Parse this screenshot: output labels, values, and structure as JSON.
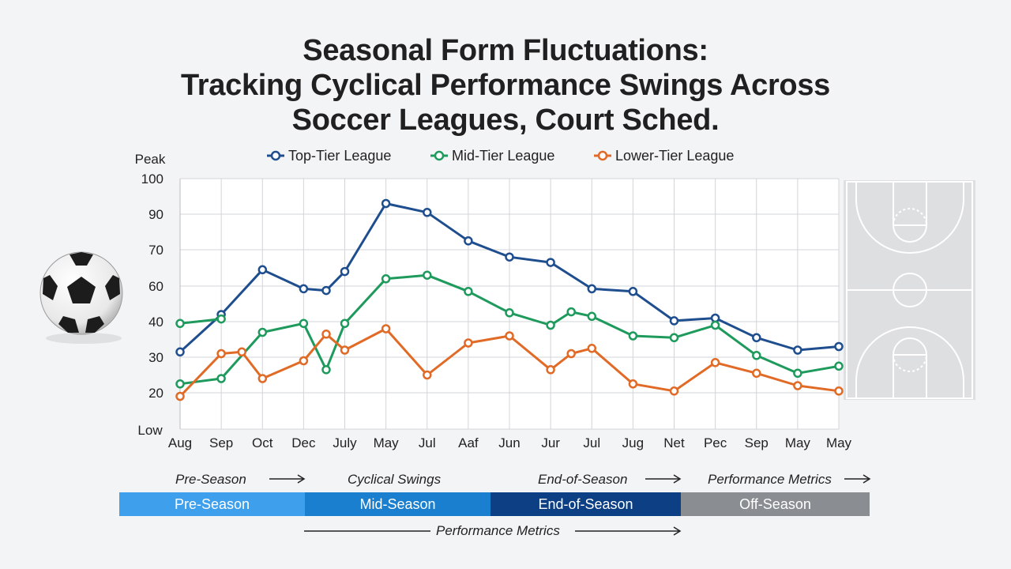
{
  "title_lines": [
    "Seasonal Form Fluctuations:",
    "Tracking Cyclical Performance Swings Across",
    "Soccer Leagues, Court Sched."
  ],
  "chart_data": {
    "type": "line",
    "y_top_label": "Peak",
    "y_bottom_label": "Low",
    "y_ticks": [
      "100",
      "90",
      "70",
      "60",
      "40",
      "30",
      "20"
    ],
    "categories": [
      "Aug",
      "Sep",
      "Oct",
      "Dec",
      "July",
      "May",
      "Jul",
      "Aaf",
      "Jun",
      "Jur",
      "Jul",
      "Jug",
      "Net",
      "Pec",
      "Sep",
      "May",
      "May"
    ],
    "grid": true,
    "legend_position": "top",
    "series": [
      {
        "name": "Top-Tier League",
        "color": "#1f4e8f",
        "points": [
          [
            0,
            31.5
          ],
          [
            1,
            44
          ],
          [
            2,
            64.5
          ],
          [
            3,
            58.5
          ],
          [
            3.55,
            57.5
          ],
          [
            4,
            64
          ],
          [
            5,
            93
          ],
          [
            6,
            90.5
          ],
          [
            7,
            75
          ],
          [
            8,
            68
          ],
          [
            9,
            66.5
          ],
          [
            10,
            58.5
          ],
          [
            11,
            57
          ],
          [
            12,
            40.5
          ],
          [
            13,
            42
          ],
          [
            14,
            35.5
          ],
          [
            15,
            32
          ],
          [
            16,
            33
          ]
        ]
      },
      {
        "name": "Mid-Tier League",
        "color": "#1e9a5c",
        "points": [
          [
            0,
            22.5
          ],
          [
            1,
            24
          ],
          [
            2,
            37
          ],
          [
            3,
            39.5
          ],
          [
            3.55,
            26.5
          ],
          [
            4,
            39.5
          ],
          [
            5,
            62
          ],
          [
            6,
            63
          ],
          [
            7,
            57
          ],
          [
            8,
            45
          ],
          [
            9,
            39
          ],
          [
            9.5,
            45.5
          ],
          [
            10,
            43
          ],
          [
            11,
            36
          ],
          [
            12,
            35.5
          ],
          [
            13,
            39
          ],
          [
            14,
            30.5
          ],
          [
            15,
            25.5
          ],
          [
            16,
            27.5
          ]
        ],
        "extra_segments": [
          [
            [
              0,
              39.5
            ],
            [
              1,
              41.5
            ]
          ]
        ]
      },
      {
        "name": "Lower-Tier League",
        "color": "#e06a26",
        "points": [
          [
            0,
            19
          ],
          [
            1,
            31
          ],
          [
            1.5,
            31.5
          ],
          [
            2,
            24
          ],
          [
            3,
            29
          ],
          [
            3.55,
            36.5
          ],
          [
            4,
            32
          ],
          [
            5,
            38
          ],
          [
            6,
            25
          ],
          [
            7,
            34
          ],
          [
            8,
            36
          ],
          [
            9,
            26.5
          ],
          [
            9.5,
            31
          ],
          [
            10,
            32.5
          ],
          [
            11,
            22.5
          ],
          [
            12,
            20.5
          ],
          [
            13,
            28.5
          ],
          [
            14,
            25.5
          ],
          [
            15,
            22
          ],
          [
            16,
            20.5
          ]
        ]
      }
    ]
  },
  "phases": [
    {
      "label": "Pre-Season",
      "color": "#3ea0ec"
    },
    {
      "label": "Mid-Season",
      "color": "#1b7fcf"
    },
    {
      "label": "End-of-Season",
      "color": "#0d3f85"
    },
    {
      "label": "Off-Season",
      "color": "#8a8e93"
    }
  ],
  "annotations": {
    "top": [
      "Pre-Season",
      "Cyclical Swings",
      "End-of-Season",
      "Performance Metrics"
    ],
    "bottom": "Performance Metrics"
  },
  "icons": {
    "ball": "soccer-ball-icon",
    "court": "basketball-court-icon"
  }
}
